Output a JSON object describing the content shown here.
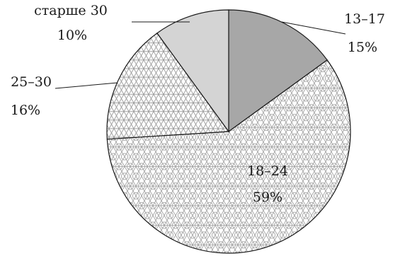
{
  "chart_data": {
    "type": "pie",
    "slices": [
      {
        "category": "13–17",
        "value": 15,
        "value_label": "15%",
        "fill": "#a7a7a7",
        "pattern": "solid"
      },
      {
        "category": "18–24",
        "value": 59,
        "value_label": "59%",
        "fill": "#d9d9d9",
        "pattern": "hexagon-lattice"
      },
      {
        "category": "25–30",
        "value": 16,
        "value_label": "16%",
        "fill": "#d9d9d9",
        "pattern": "triangle-lattice"
      },
      {
        "category": "старше 30",
        "value": 10,
        "value_label": "10%",
        "fill": "#d4d4d4",
        "pattern": "solid"
      }
    ],
    "start_angle": "12 o'clock",
    "direction": "clockwise",
    "outline_color": "#1a1a1a",
    "legend": "none"
  }
}
